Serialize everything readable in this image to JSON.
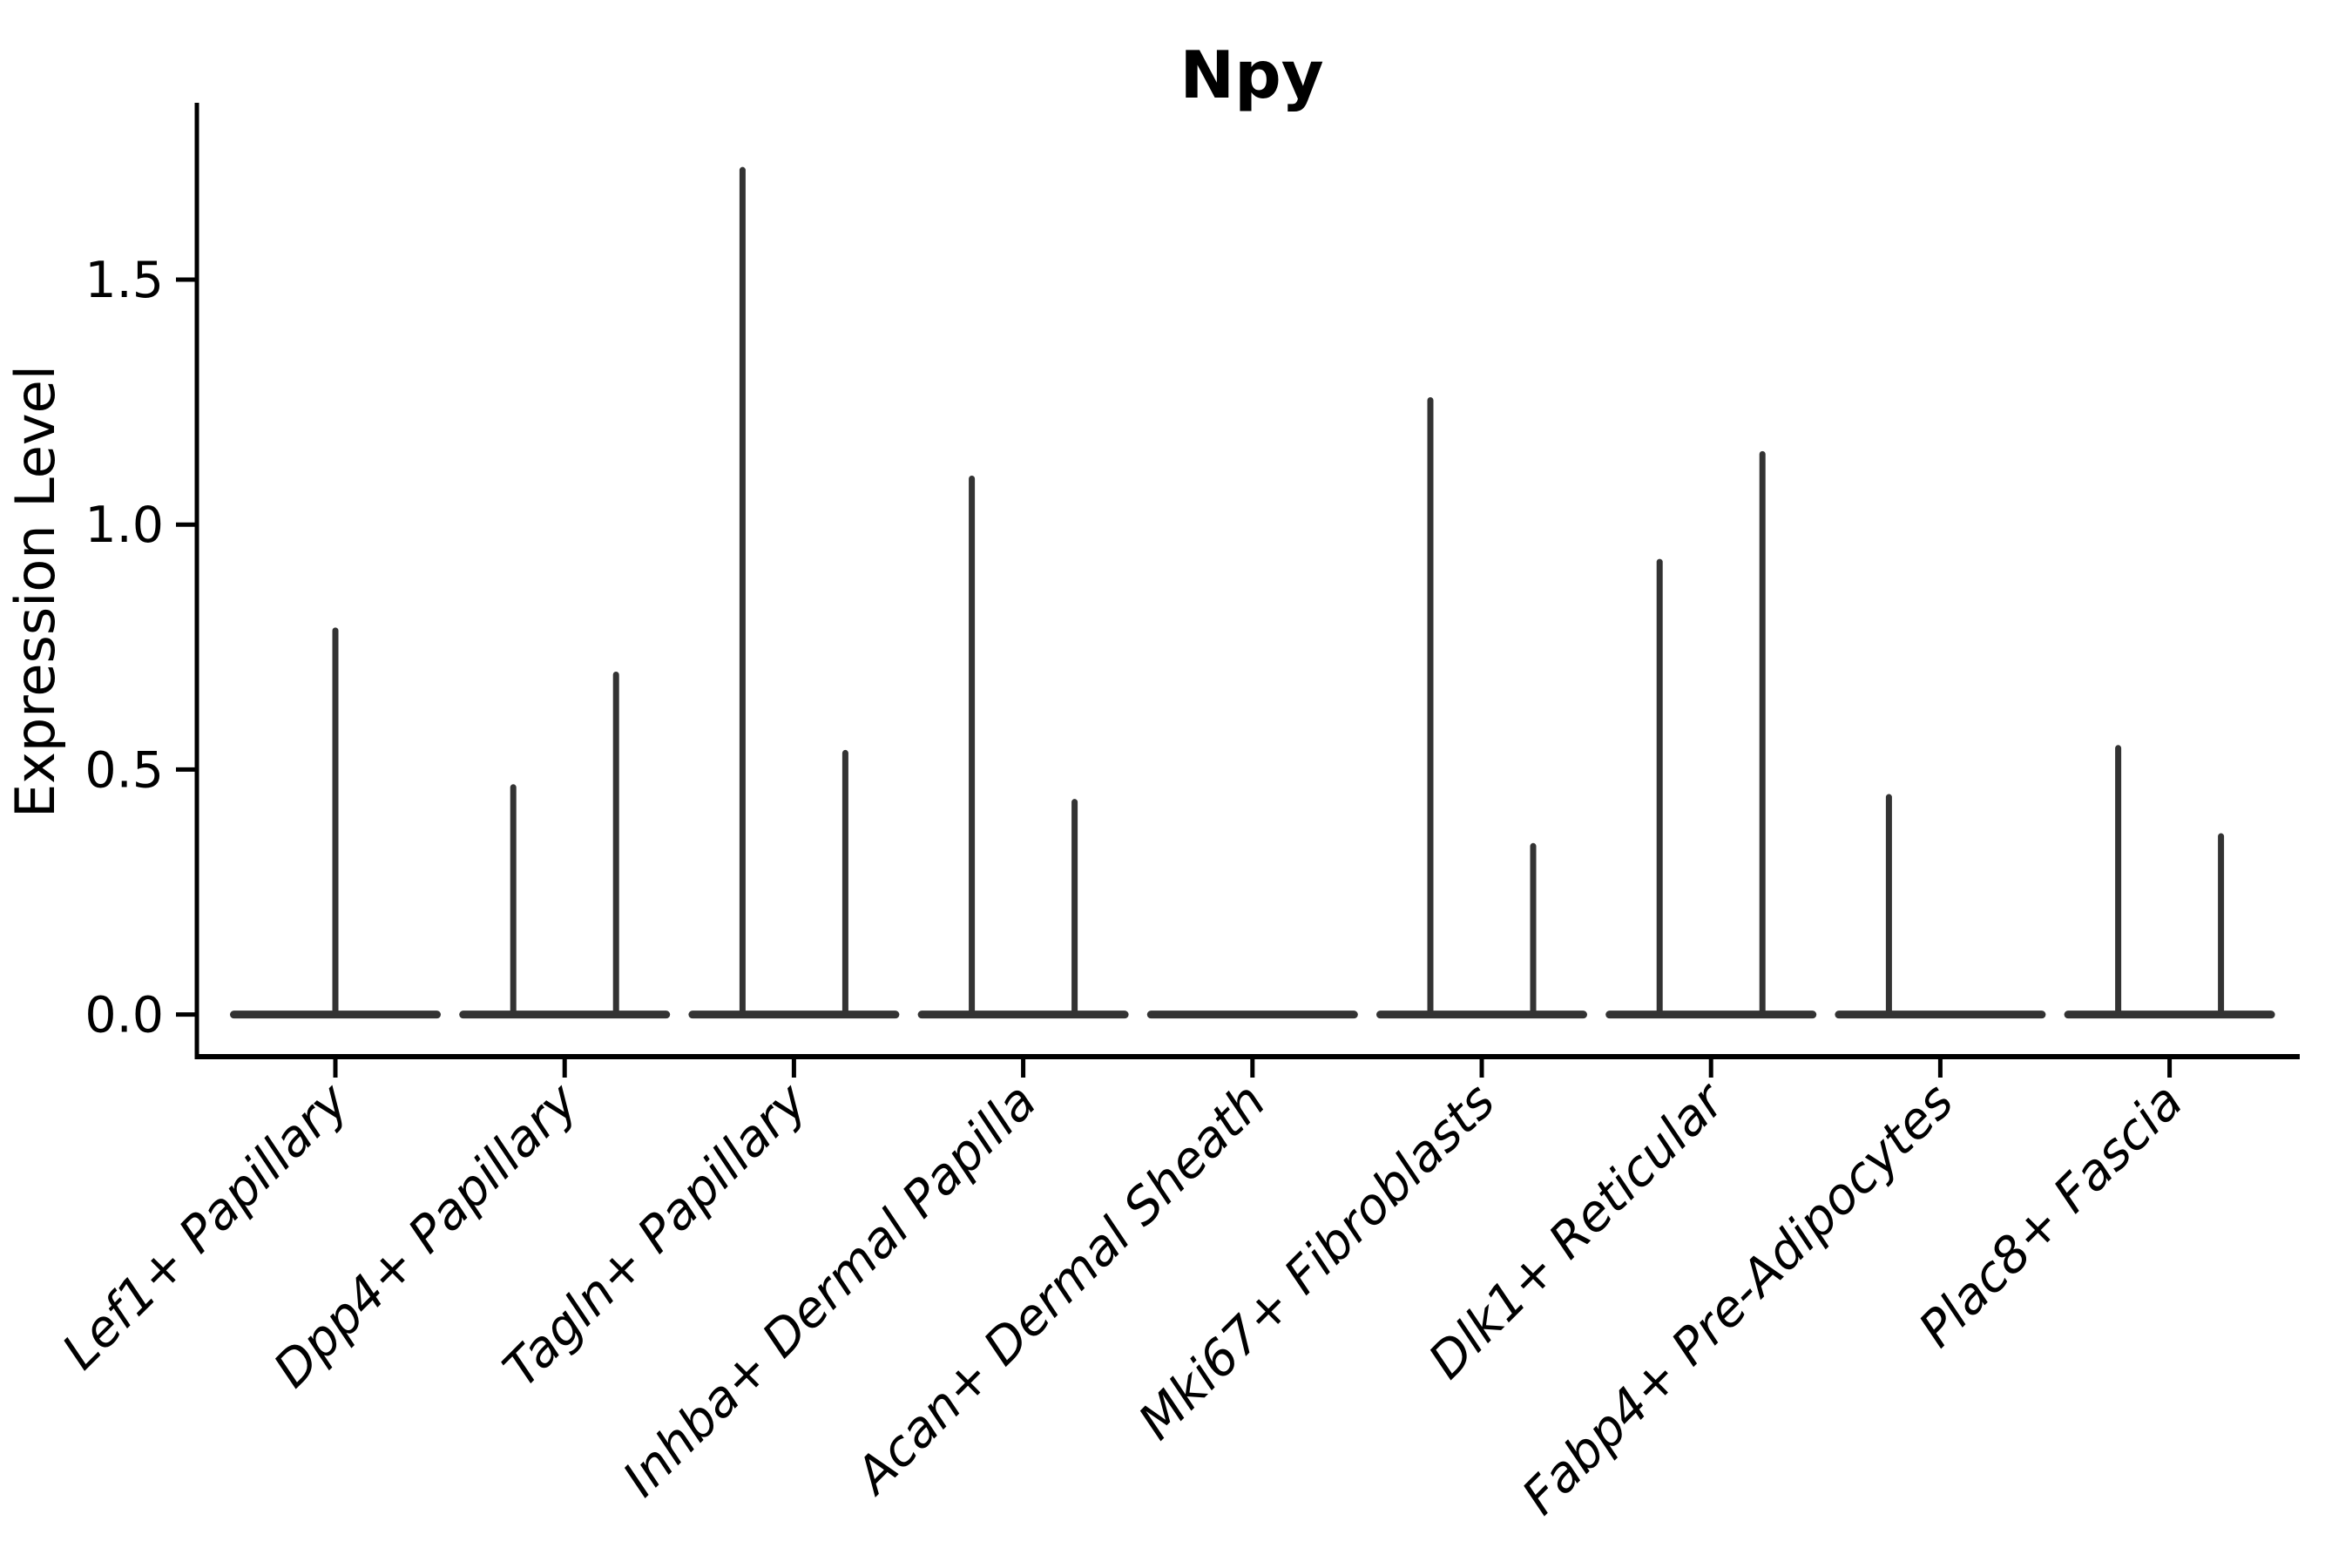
{
  "chart_data": {
    "type": "violin",
    "title": "Npy",
    "ylabel": "Expression Level",
    "xlabel": "",
    "yticks": [
      "0.0",
      "0.5",
      "1.0",
      "1.5"
    ],
    "ytick_values": [
      0.0,
      0.5,
      1.0,
      1.5
    ],
    "ylim": [
      -0.086,
      1.861
    ],
    "grid": false,
    "legend": null,
    "categories": [
      "Lef1+ Papillary",
      "Dpp4+ Papillary",
      "Tagln+ Papillary",
      "Inhba+ Dermal Papilla",
      "Acan+ Dermal Sheath",
      "Mki67+ Fibroblasts",
      "Dlk1+ Reticular",
      "Fabp4+ Pre-Adipocytes",
      "Plac8+ Fascia"
    ],
    "violins": [
      {
        "category": "Lef1+ Papillary",
        "baseline": 0,
        "spikes": [
          {
            "pos": "center",
            "max": 0.79
          }
        ]
      },
      {
        "category": "Dpp4+ Papillary",
        "baseline": 0,
        "spikes": [
          {
            "pos": "left",
            "max": 0.47
          },
          {
            "pos": "right",
            "max": 0.7
          }
        ]
      },
      {
        "category": "Tagln+ Papillary",
        "baseline": 0,
        "spikes": [
          {
            "pos": "left",
            "max": 1.73
          },
          {
            "pos": "right",
            "max": 0.54
          }
        ]
      },
      {
        "category": "Inhba+ Dermal Papilla",
        "baseline": 0,
        "spikes": [
          {
            "pos": "left",
            "max": 1.1
          },
          {
            "pos": "right",
            "max": 0.44
          }
        ]
      },
      {
        "category": "Acan+ Dermal Sheath",
        "baseline": 0,
        "spikes": []
      },
      {
        "category": "Mki67+ Fibroblasts",
        "baseline": 0,
        "spikes": [
          {
            "pos": "left",
            "max": 1.26
          },
          {
            "pos": "right",
            "max": 0.35
          }
        ]
      },
      {
        "category": "Dlk1+ Reticular",
        "baseline": 0,
        "spikes": [
          {
            "pos": "left",
            "max": 0.93
          },
          {
            "pos": "right",
            "max": 1.15
          }
        ]
      },
      {
        "category": "Fabp4+ Pre-Adipocytes",
        "baseline": 0,
        "spikes": [
          {
            "pos": "left",
            "max": 0.45
          }
        ]
      },
      {
        "category": "Plac8+ Fascia",
        "baseline": 0,
        "spikes": [
          {
            "pos": "left",
            "max": 0.55
          },
          {
            "pos": "right",
            "max": 0.37
          }
        ]
      }
    ],
    "colors": {
      "violin": "#333333",
      "axis": "#000000",
      "text": "#000000",
      "background": "#ffffff"
    }
  }
}
